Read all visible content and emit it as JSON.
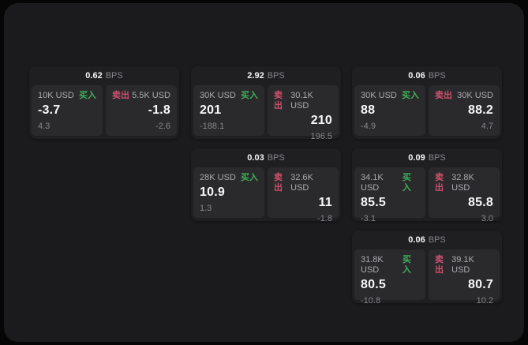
{
  "labels": {
    "bps_unit": "BPS",
    "buy_tag": "买入",
    "sell_tag": "卖出"
  },
  "colors": {
    "page_background": "#060607",
    "window_background": "#1b1b1d",
    "card_background": "#1f1f21",
    "panel_background": "#2a2a2c",
    "buy_green": "#3fae5a",
    "sell_red": "#cf4f6e",
    "primary_text": "#f7f7f9",
    "muted_text": "#86868b"
  },
  "cards": [
    {
      "row": 1,
      "col": 1,
      "bps": "0.62",
      "buy": {
        "size": "10K USD",
        "price": "-3.7",
        "delta": "4.3"
      },
      "sell": {
        "size": "5.5K USD",
        "price": "-1.8",
        "delta": "-2.6"
      }
    },
    {
      "row": 1,
      "col": 2,
      "bps": "2.92",
      "buy": {
        "size": "30K USD",
        "price": "201",
        "delta": "-188.1"
      },
      "sell": {
        "size": "30.1K USD",
        "price": "210",
        "delta": "196.5"
      }
    },
    {
      "row": 1,
      "col": 3,
      "bps": "0.06",
      "buy": {
        "size": "30K USD",
        "price": "88",
        "delta": "-4.9"
      },
      "sell": {
        "size": "30K USD",
        "price": "88.2",
        "delta": "4.7"
      }
    },
    {
      "row": 2,
      "col": 2,
      "bps": "0.03",
      "buy": {
        "size": "28K USD",
        "price": "10.9",
        "delta": "1.3"
      },
      "sell": {
        "size": "32.6K USD",
        "price": "11",
        "delta": "-1.8"
      }
    },
    {
      "row": 2,
      "col": 3,
      "bps": "0.09",
      "buy": {
        "size": "34.1K USD",
        "price": "85.5",
        "delta": "-3.1"
      },
      "sell": {
        "size": "32.8K USD",
        "price": "85.8",
        "delta": "3.0"
      }
    },
    {
      "row": 3,
      "col": 3,
      "bps": "0.06",
      "buy": {
        "size": "31.8K USD",
        "price": "80.5",
        "delta": "-10.8"
      },
      "sell": {
        "size": "39.1K USD",
        "price": "80.7",
        "delta": "10.2"
      }
    }
  ]
}
